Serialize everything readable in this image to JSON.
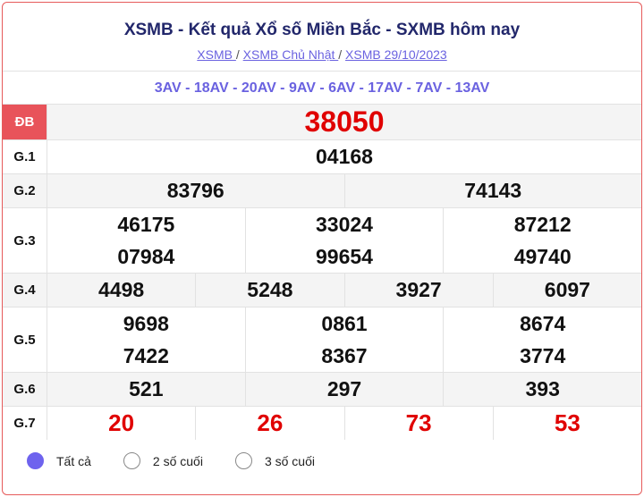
{
  "header": {
    "title": "XSMB - Kết quả Xổ số Miền Bắc - SXMB hôm nay",
    "breadcrumbs": [
      "XSMB ",
      "XSMB Chủ Nhật ",
      "XSMB 29/10/2023"
    ],
    "separator": "/"
  },
  "codes": "3AV - 18AV - 20AV - 9AV - 6AV - 17AV - 7AV - 13AV",
  "prizes": [
    {
      "label": "ĐB",
      "numbers": [
        [
          "38050"
        ]
      ]
    },
    {
      "label": "G.1",
      "numbers": [
        [
          "04168"
        ]
      ]
    },
    {
      "label": "G.2",
      "numbers": [
        [
          "83796"
        ],
        [
          "74143"
        ]
      ]
    },
    {
      "label": "G.3",
      "numbers": [
        [
          "46175",
          "07984"
        ],
        [
          "33024",
          "99654"
        ],
        [
          "87212",
          "49740"
        ]
      ]
    },
    {
      "label": "G.4",
      "numbers": [
        [
          "4498"
        ],
        [
          "5248"
        ],
        [
          "3927"
        ],
        [
          "6097"
        ]
      ]
    },
    {
      "label": "G.5",
      "numbers": [
        [
          "9698",
          "7422"
        ],
        [
          "0861",
          "8367"
        ],
        [
          "8674",
          "3774"
        ]
      ]
    },
    {
      "label": "G.6",
      "numbers": [
        [
          "521"
        ],
        [
          "297"
        ],
        [
          "393"
        ]
      ]
    },
    {
      "label": "G.7",
      "numbers": [
        [
          "20"
        ],
        [
          "26"
        ],
        [
          "73"
        ],
        [
          "53"
        ]
      ]
    }
  ],
  "filters": {
    "options": [
      "Tất cả",
      "2 số cuối",
      "3 số cuối"
    ],
    "selected": "Tất cả"
  },
  "colors": {
    "accent": "#6e63ee",
    "special": "#e00000",
    "label_bg": "#e8535a",
    "title": "#22276b"
  }
}
